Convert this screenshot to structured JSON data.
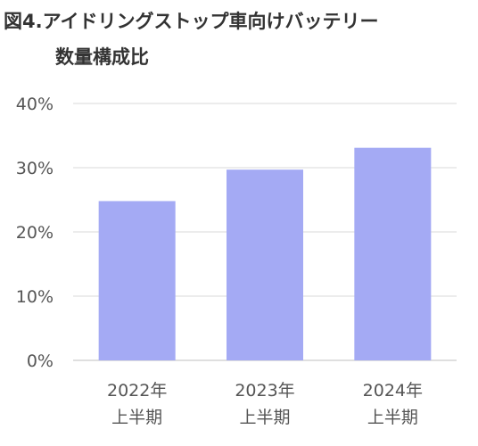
{
  "chart_data": {
    "type": "bar",
    "title": [
      "図4.アイドリングストップ車向けバッテリー",
      "数量構成比"
    ],
    "categories": [
      [
        "2022年",
        "上半期"
      ],
      [
        "2023年",
        "上半期"
      ],
      [
        "2024年",
        "上半期"
      ]
    ],
    "values": [
      24.8,
      29.7,
      33.1
    ],
    "unit": "%",
    "ylim": [
      0,
      40
    ],
    "yticks": [
      "0%",
      "10%",
      "20%",
      "30%",
      "40%"
    ],
    "ytick_values": [
      0,
      10,
      20,
      30,
      40
    ],
    "grid": true,
    "legend": "none",
    "bar_color": "#a4aaf4"
  }
}
